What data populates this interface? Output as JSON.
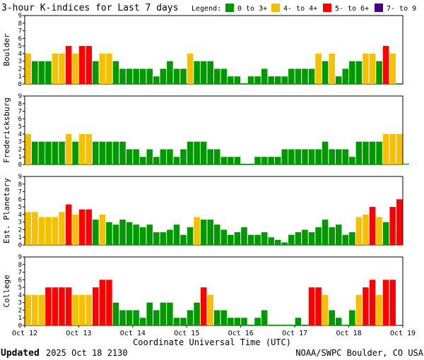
{
  "title": "3-hour K-indices for Last 7 days",
  "legend": {
    "label": "Legend:",
    "items": [
      {
        "label": "0 to 3+",
        "color": "#009900"
      },
      {
        "label": "4- to 4+",
        "color": "#f5c000"
      },
      {
        "label": "5- to 6+",
        "color": "#ff0000"
      },
      {
        "label": "7- to 9",
        "color": "#4b0082"
      }
    ]
  },
  "footer": {
    "updated_label": "Updated",
    "updated_value": "2025 Oct 18 2130",
    "source": "NOAA/SWPC Boulder, CO USA"
  },
  "chart_data": {
    "type": "bar",
    "xlabel": "Coordinate Universal Time (UTC)",
    "x_ticks": [
      "Oct 12",
      "Oct 13",
      "Oct 14",
      "Oct 15",
      "Oct 16",
      "Oct 17",
      "Oct 18",
      "Oct 19"
    ],
    "y_ticks": [
      "0",
      "1",
      "2",
      "3",
      "4",
      "5",
      "6",
      "7",
      "8",
      "9"
    ],
    "ylim": [
      0,
      9
    ],
    "grid": false,
    "panels": [
      {
        "name": "Boulder",
        "values": [
          4,
          3,
          3,
          3,
          4,
          4,
          5,
          4,
          5,
          5,
          3,
          4,
          4,
          3,
          2,
          2,
          2,
          2,
          2,
          1,
          2,
          3,
          2,
          2,
          4,
          3,
          3,
          3,
          2,
          2,
          1,
          1,
          0.1,
          1,
          1,
          2,
          1,
          1,
          1,
          2,
          2,
          2,
          2,
          4,
          3,
          4,
          1,
          2,
          3,
          3,
          4,
          4,
          3,
          5,
          4,
          0.1
        ]
      },
      {
        "name": "Fredericksburg",
        "values": [
          4,
          3,
          3,
          3,
          3,
          3,
          4,
          3,
          4,
          4,
          3,
          3,
          3,
          3,
          3,
          2,
          2,
          1,
          2,
          1,
          2,
          2,
          1,
          2,
          3,
          3,
          3,
          2,
          2,
          1,
          1,
          1,
          0.1,
          0.1,
          1,
          1,
          1,
          1,
          2,
          2,
          2,
          2,
          2,
          2,
          3,
          2,
          2,
          2,
          1,
          3,
          3,
          3,
          3,
          4,
          4,
          4,
          0.1
        ]
      },
      {
        "name": "Est. Planetary",
        "values": [
          4.33,
          4.33,
          3.67,
          3.67,
          3.67,
          4.33,
          5.33,
          4,
          4.67,
          4.67,
          3.33,
          4,
          3,
          2.67,
          3.33,
          3,
          2.67,
          2.33,
          2.67,
          1.67,
          1.67,
          2,
          2.67,
          1.33,
          2.33,
          3.67,
          3.33,
          3.33,
          2.67,
          2,
          1.33,
          1.67,
          2.33,
          1.33,
          1.33,
          1.67,
          1,
          0.67,
          0.33,
          1.33,
          1.67,
          2,
          1.67,
          2.33,
          3.33,
          2.33,
          2.67,
          1.33,
          1.67,
          3.67,
          4,
          5,
          3.67,
          3,
          5,
          6
        ]
      },
      {
        "name": "College",
        "values": [
          4,
          4,
          4,
          5,
          5,
          5,
          5,
          4,
          4,
          4,
          5,
          6,
          6,
          3,
          2,
          2,
          2,
          1,
          3,
          2,
          3,
          3,
          1,
          1,
          2,
          3,
          5,
          4,
          2,
          2,
          1,
          1,
          1,
          0.1,
          1,
          2,
          0.1,
          0.1,
          0.1,
          0.1,
          1,
          0.1,
          5,
          5,
          4,
          2,
          1,
          0.1,
          2,
          4,
          5,
          6,
          4,
          6,
          6
        ]
      }
    ]
  }
}
